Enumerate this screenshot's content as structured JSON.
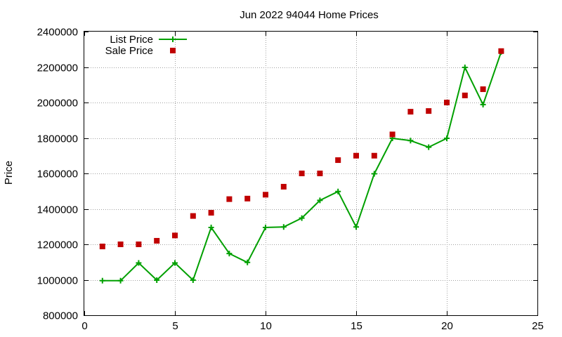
{
  "chart_data": {
    "type": "line",
    "title": "Jun 2022 94044 Home Prices",
    "xlabel": "",
    "ylabel": "Price",
    "xlim": [
      0,
      25
    ],
    "ylim": [
      800000,
      2400000
    ],
    "x_ticks": [
      0,
      5,
      10,
      15,
      20,
      25
    ],
    "y_ticks": [
      800000,
      1000000,
      1200000,
      1400000,
      1600000,
      1800000,
      2000000,
      2200000,
      2400000
    ],
    "grid": true,
    "legend_position": "top-left",
    "series": [
      {
        "name": "List Price",
        "style": "line-with-plus-markers",
        "color": "#00a000",
        "x": [
          1,
          2,
          3,
          4,
          5,
          6,
          7,
          8,
          9,
          10,
          11,
          12,
          13,
          14,
          15,
          16,
          17,
          18,
          19,
          20,
          21,
          22,
          23
        ],
        "values": [
          995000,
          995000,
          1095000,
          998000,
          1095000,
          998000,
          1295000,
          1148000,
          1098000,
          1295000,
          1298000,
          1348000,
          1448000,
          1498000,
          1298000,
          1598000,
          1798000,
          1785000,
          1748000,
          1798000,
          2198000,
          1988000,
          2285000
        ]
      },
      {
        "name": "Sale Price",
        "style": "square-markers",
        "color": "#c00000",
        "x": [
          1,
          2,
          3,
          4,
          5,
          6,
          7,
          8,
          9,
          10,
          11,
          12,
          13,
          14,
          15,
          16,
          17,
          18,
          19,
          20,
          21,
          22,
          23
        ],
        "values": [
          1188000,
          1200000,
          1200000,
          1220000,
          1250000,
          1360000,
          1378000,
          1455000,
          1458000,
          1480000,
          1525000,
          1600000,
          1600000,
          1675000,
          1700000,
          1700000,
          1820000,
          1948000,
          1952000,
          2000000,
          2040000,
          2075000,
          2290000
        ]
      }
    ]
  }
}
